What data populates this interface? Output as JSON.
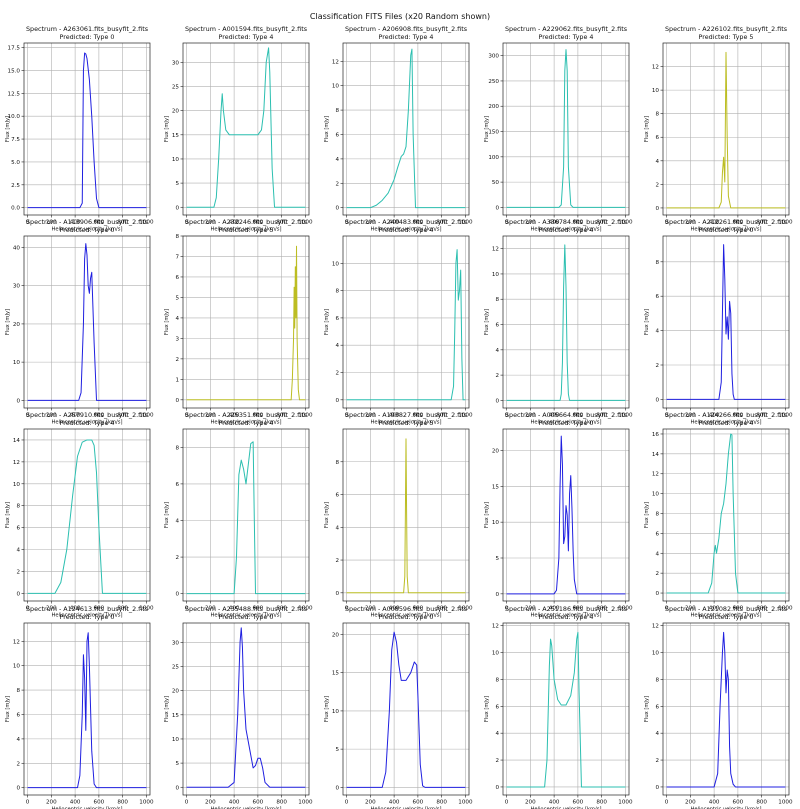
{
  "figure": {
    "suptitle": "Classification FITS Files (x20 Random shown)",
    "xlabel": "Heliocentric velocity [km/s]",
    "ylabel": "Flux [mJy]"
  },
  "chart_data": [
    {
      "type": "line",
      "title": "Spectrum - A263061.fits_busyfit_2.fits",
      "subtitle": "Predicted: Type 0",
      "color": "#1f1fe0",
      "xlim": [
        -30,
        1030
      ],
      "ylim": [
        -0.8,
        18
      ],
      "yticks": [
        0.0,
        2.5,
        5.0,
        7.5,
        10.0,
        12.5,
        15.0,
        17.5
      ],
      "xticks": [
        0,
        200,
        400,
        600,
        800,
        1000
      ],
      "x": [
        0,
        440,
        460,
        470,
        480,
        490,
        500,
        520,
        540,
        560,
        580,
        600,
        1000
      ],
      "y": [
        0,
        0,
        0.5,
        15,
        16.9,
        16.8,
        16.3,
        14,
        10,
        5,
        1,
        0,
        0
      ]
    },
    {
      "type": "line",
      "title": "Spectrum - A001594.fits_busyfit_2.fits",
      "subtitle": "Predicted: Type 4",
      "color": "#2bbfb0",
      "xlim": [
        -30,
        1030
      ],
      "ylim": [
        -1.6,
        34
      ],
      "yticks": [
        0,
        5,
        10,
        15,
        20,
        25,
        30
      ],
      "xticks": [
        0,
        200,
        400,
        600,
        800,
        1000
      ],
      "x": [
        0,
        230,
        250,
        270,
        290,
        300,
        310,
        330,
        360,
        400,
        500,
        600,
        630,
        650,
        670,
        690,
        700,
        720,
        740,
        1000
      ],
      "y": [
        0,
        0,
        2,
        10,
        20,
        23.5,
        20,
        16,
        15,
        15,
        15,
        15,
        16,
        20,
        30,
        33,
        28,
        8,
        0,
        0
      ]
    },
    {
      "type": "line",
      "title": "Spectrum - A206908.fits_busyfit_2.fits",
      "subtitle": "Predicted: Type 4",
      "color": "#2bbfb0",
      "xlim": [
        -30,
        1030
      ],
      "ylim": [
        -0.6,
        13.5
      ],
      "yticks": [
        0,
        2,
        4,
        6,
        8,
        10,
        12
      ],
      "xticks": [
        0,
        200,
        400,
        600,
        800,
        1000
      ],
      "x": [
        0,
        200,
        250,
        300,
        350,
        400,
        430,
        460,
        480,
        500,
        520,
        540,
        550,
        560,
        580,
        1000
      ],
      "y": [
        0,
        0,
        0.2,
        0.6,
        1.2,
        2.3,
        3.3,
        4.2,
        4.4,
        5,
        8,
        12.5,
        13,
        6,
        0,
        0
      ]
    },
    {
      "type": "line",
      "title": "Spectrum - A229062.fits_busyfit_2.fits",
      "subtitle": "Predicted: Type 4",
      "color": "#2bbfb0",
      "xlim": [
        -30,
        1030
      ],
      "ylim": [
        -15,
        325
      ],
      "yticks": [
        0,
        50,
        100,
        150,
        200,
        250,
        300
      ],
      "xticks": [
        0,
        200,
        400,
        600,
        800,
        1000
      ],
      "x": [
        0,
        440,
        460,
        480,
        490,
        500,
        510,
        520,
        540,
        560,
        1000
      ],
      "y": [
        0,
        0,
        5,
        80,
        270,
        312,
        270,
        80,
        5,
        0,
        0
      ]
    },
    {
      "type": "line",
      "title": "Spectrum - A226102.fits_busyfit_2.fits",
      "subtitle": "Predicted: Type 5",
      "color": "#bcbd22",
      "xlim": [
        -30,
        1030
      ],
      "ylim": [
        -0.6,
        14
      ],
      "yticks": [
        0,
        2,
        4,
        6,
        8,
        10,
        12
      ],
      "xticks": [
        0,
        200,
        400,
        600,
        800,
        1000
      ],
      "x": [
        0,
        440,
        460,
        470,
        480,
        490,
        500,
        510,
        520,
        540,
        1000
      ],
      "y": [
        0,
        0,
        0.5,
        3,
        4.3,
        2.2,
        13.2,
        6,
        1,
        0,
        0
      ]
    },
    {
      "type": "line",
      "title": "Spectrum - A113906.fits_busyfit_2.fits",
      "subtitle": "Predicted: Type 0",
      "color": "#1f1fe0",
      "xlim": [
        -30,
        1030
      ],
      "ylim": [
        -2,
        43
      ],
      "yticks": [
        0,
        10,
        20,
        30,
        40
      ],
      "xticks": [
        0,
        200,
        400,
        600,
        800,
        1000
      ],
      "x": [
        0,
        430,
        450,
        470,
        480,
        490,
        500,
        510,
        520,
        530,
        540,
        560,
        580,
        1000
      ],
      "y": [
        0,
        0,
        2,
        20,
        37,
        41,
        38,
        30,
        28,
        32,
        33.5,
        15,
        0,
        0
      ]
    },
    {
      "type": "line",
      "title": "Spectrum - A232246.fits_busyfit_2.fits",
      "subtitle": "Predicted: Type 5",
      "color": "#bcbd22",
      "xlim": [
        -30,
        1030
      ],
      "ylim": [
        -0.4,
        8
      ],
      "yticks": [
        0,
        1,
        2,
        3,
        4,
        5,
        6,
        7,
        8
      ],
      "xticks": [
        0,
        200,
        400,
        600,
        800,
        1000
      ],
      "x": [
        0,
        880,
        890,
        900,
        905,
        910,
        915,
        920,
        925,
        930,
        940,
        950,
        1000
      ],
      "y": [
        0,
        0,
        1,
        3,
        5.5,
        3.5,
        6.5,
        4,
        7.5,
        3,
        0.5,
        0,
        0
      ]
    },
    {
      "type": "line",
      "title": "Spectrum - A240483.fits_busyfit_2.fits",
      "subtitle": "Predicted: Type 4",
      "color": "#2bbfb0",
      "xlim": [
        -30,
        1030
      ],
      "ylim": [
        -0.6,
        12
      ],
      "yticks": [
        0,
        2,
        4,
        6,
        8,
        10
      ],
      "xticks": [
        0,
        200,
        400,
        600,
        800,
        1000
      ],
      "x": [
        0,
        880,
        900,
        910,
        920,
        930,
        940,
        950,
        960,
        970,
        980,
        1000
      ],
      "y": [
        0,
        0,
        1,
        5,
        10,
        11,
        7.3,
        8,
        9.5,
        3,
        0,
        0
      ]
    },
    {
      "type": "line",
      "title": "Spectrum - A336784.fits_busyfit_2.fits",
      "subtitle": "Predicted: Type 4",
      "color": "#2bbfb0",
      "xlim": [
        -30,
        1030
      ],
      "ylim": [
        -0.6,
        13
      ],
      "yticks": [
        0,
        2,
        4,
        6,
        8,
        10,
        12
      ],
      "xticks": [
        0,
        200,
        400,
        600,
        800,
        1000
      ],
      "x": [
        0,
        450,
        460,
        470,
        480,
        490,
        500,
        510,
        520,
        530,
        1000
      ],
      "y": [
        0,
        0,
        0.5,
        3,
        9,
        12.3,
        9,
        3,
        0.5,
        0,
        0
      ]
    },
    {
      "type": "line",
      "title": "Spectrum - A212261.fits_busyfit_2.fits",
      "subtitle": "Predicted: Type 0",
      "color": "#1f1fe0",
      "xlim": [
        -30,
        1030
      ],
      "ylim": [
        -0.5,
        9.5
      ],
      "yticks": [
        0,
        2,
        4,
        6,
        8
      ],
      "xticks": [
        0,
        200,
        400,
        600,
        800,
        1000
      ],
      "x": [
        0,
        440,
        460,
        470,
        480,
        490,
        500,
        510,
        520,
        530,
        540,
        550,
        560,
        570,
        1000
      ],
      "y": [
        0,
        0,
        1,
        5,
        9,
        7,
        3.8,
        4.8,
        3.5,
        5.7,
        5,
        1.5,
        0.3,
        0,
        0
      ]
    },
    {
      "type": "line",
      "title": "Spectrum - A257910.fits_busyfit_2.fits",
      "subtitle": "Predicted: Type 4",
      "color": "#2bbfb0",
      "xlim": [
        -30,
        1030
      ],
      "ylim": [
        -0.7,
        15
      ],
      "yticks": [
        0,
        2,
        4,
        6,
        8,
        10,
        12,
        14
      ],
      "xticks": [
        0,
        200,
        400,
        600,
        800,
        1000
      ],
      "x": [
        0,
        230,
        280,
        330,
        380,
        420,
        460,
        500,
        540,
        560,
        580,
        600,
        630,
        1000
      ],
      "y": [
        0,
        0,
        1,
        4,
        9,
        12.5,
        13.8,
        14,
        14,
        13.5,
        11,
        6,
        0,
        0
      ]
    },
    {
      "type": "line",
      "title": "Spectrum - A225351.fits_busyfit_2.fits",
      "subtitle": "Predicted: Type 4",
      "color": "#2bbfb0",
      "xlim": [
        -30,
        1030
      ],
      "ylim": [
        -0.4,
        9
      ],
      "yticks": [
        0,
        2,
        4,
        6,
        8
      ],
      "xticks": [
        0,
        200,
        400,
        600,
        800,
        1000
      ],
      "x": [
        0,
        400,
        420,
        440,
        460,
        480,
        500,
        540,
        560,
        570,
        580,
        1000
      ],
      "y": [
        0,
        0,
        2,
        6.5,
        7.3,
        6.8,
        6,
        8.2,
        8.3,
        4,
        0,
        0
      ]
    },
    {
      "type": "line",
      "title": "Spectrum - A193827.fits_busyfit_2.fits",
      "subtitle": "Predicted: Type 5",
      "color": "#bcbd22",
      "xlim": [
        -30,
        1030
      ],
      "ylim": [
        -0.5,
        10
      ],
      "yticks": [
        0,
        2,
        4,
        6,
        8
      ],
      "xticks": [
        0,
        200,
        400,
        600,
        800,
        1000
      ],
      "x": [
        0,
        480,
        490,
        495,
        500,
        505,
        510,
        520,
        1000
      ],
      "y": [
        0,
        0,
        1,
        5,
        9.4,
        5,
        1,
        0,
        0
      ]
    },
    {
      "type": "line",
      "title": "Spectrum - A005664.fits_busyfit_2.fits",
      "subtitle": "Predicted: Type 0",
      "color": "#1f1fe0",
      "xlim": [
        -30,
        1030
      ],
      "ylim": [
        -1,
        23
      ],
      "yticks": [
        0,
        5,
        10,
        15,
        20
      ],
      "xticks": [
        0,
        200,
        400,
        600,
        800,
        1000
      ],
      "x": [
        0,
        400,
        420,
        440,
        450,
        460,
        470,
        480,
        490,
        500,
        510,
        520,
        530,
        540,
        550,
        560,
        570,
        590,
        1000
      ],
      "y": [
        0,
        0,
        0.5,
        5,
        15,
        22,
        18,
        7,
        8,
        12.3,
        11,
        6,
        14,
        16.5,
        12,
        6,
        2,
        0,
        0
      ]
    },
    {
      "type": "line",
      "title": "Spectrum - A124266.fits_busyfit_2.fits",
      "subtitle": "Predicted: Type 4",
      "color": "#2bbfb0",
      "xlim": [
        -30,
        1030
      ],
      "ylim": [
        -0.8,
        16.5
      ],
      "yticks": [
        0,
        2,
        4,
        6,
        8,
        10,
        12,
        14,
        16
      ],
      "xticks": [
        0,
        200,
        400,
        600,
        800,
        1000
      ],
      "x": [
        0,
        350,
        380,
        400,
        410,
        420,
        440,
        460,
        480,
        500,
        520,
        540,
        550,
        560,
        580,
        600,
        1000
      ],
      "y": [
        0,
        0,
        1,
        4,
        4.8,
        4,
        5.5,
        8,
        9,
        11,
        14,
        16,
        15.9,
        10,
        2,
        0,
        0
      ]
    },
    {
      "type": "line",
      "title": "Spectrum - A124613.fits_busyfit_2.fits",
      "subtitle": "Predicted: Type 0",
      "color": "#1f1fe0",
      "xlim": [
        -30,
        1030
      ],
      "ylim": [
        -0.6,
        13.5
      ],
      "yticks": [
        0,
        2,
        4,
        6,
        8,
        10,
        12
      ],
      "xticks": [
        0,
        200,
        400,
        600,
        800,
        1000
      ],
      "x": [
        0,
        420,
        440,
        460,
        470,
        480,
        490,
        500,
        510,
        520,
        540,
        560,
        580,
        1000
      ],
      "y": [
        0,
        0,
        1,
        6,
        10.9,
        9,
        4.7,
        12,
        12.7,
        10,
        3,
        0.3,
        0,
        0
      ]
    },
    {
      "type": "line",
      "title": "Spectrum - A235488.fits_busyfit_2.fits",
      "subtitle": "Predicted: Type 0",
      "color": "#1f1fe0",
      "xlim": [
        -30,
        1030
      ],
      "ylim": [
        -1.6,
        34
      ],
      "yticks": [
        0,
        5,
        10,
        15,
        20,
        25,
        30
      ],
      "xticks": [
        0,
        200,
        400,
        600,
        800,
        1000
      ],
      "x": [
        0,
        350,
        400,
        430,
        450,
        460,
        470,
        480,
        500,
        530,
        560,
        580,
        600,
        620,
        640,
        660,
        700,
        1000
      ],
      "y": [
        0,
        0,
        1,
        15,
        30,
        33,
        29,
        20,
        12,
        8,
        4,
        4.5,
        6,
        6,
        4,
        1,
        0,
        0
      ]
    },
    {
      "type": "line",
      "title": "Spectrum - A008596.fits_busyfit_2.fits",
      "subtitle": "Predicted: Type 0",
      "color": "#1f1fe0",
      "xlim": [
        -30,
        1030
      ],
      "ylim": [
        -1,
        21.5
      ],
      "yticks": [
        0,
        5,
        10,
        15,
        20
      ],
      "xticks": [
        0,
        200,
        400,
        600,
        800,
        1000
      ],
      "x": [
        0,
        300,
        330,
        360,
        380,
        400,
        420,
        440,
        460,
        500,
        540,
        570,
        590,
        600,
        620,
        640,
        660,
        1000
      ],
      "y": [
        0,
        0,
        2,
        10,
        18,
        20.3,
        19,
        16,
        14,
        14,
        15,
        16.4,
        16,
        12,
        3,
        0.2,
        0,
        0
      ]
    },
    {
      "type": "line",
      "title": "Spectrum - A251186.fits_busyfit_2.fits",
      "subtitle": "Predicted: Type 4",
      "color": "#2bbfb0",
      "xlim": [
        -30,
        1030
      ],
      "ylim": [
        -0.6,
        12.2
      ],
      "yticks": [
        0,
        2,
        4,
        6,
        8,
        10,
        12
      ],
      "xticks": [
        0,
        200,
        400,
        600,
        800,
        1000
      ],
      "x": [
        0,
        320,
        340,
        360,
        370,
        380,
        400,
        430,
        460,
        500,
        540,
        570,
        590,
        600,
        610,
        630,
        1000
      ],
      "y": [
        0,
        0,
        2,
        9,
        11,
        10.5,
        8,
        6.5,
        6.1,
        6.1,
        6.8,
        8.5,
        11,
        11.5,
        7,
        0,
        0
      ]
    },
    {
      "type": "line",
      "title": "Spectrum - A121082.fits_busyfit_2.fits",
      "subtitle": "Predicted: Type 0",
      "color": "#1f1fe0",
      "xlim": [
        -30,
        1030
      ],
      "ylim": [
        -0.6,
        12.2
      ],
      "yticks": [
        0,
        2,
        4,
        6,
        8,
        10,
        12
      ],
      "xticks": [
        0,
        200,
        400,
        600,
        800,
        1000
      ],
      "x": [
        0,
        400,
        430,
        450,
        470,
        480,
        490,
        500,
        510,
        520,
        530,
        540,
        560,
        580,
        1000
      ],
      "y": [
        0,
        0,
        1,
        6,
        10,
        11.5,
        10,
        7,
        8.7,
        8,
        3,
        1,
        0.2,
        0,
        0
      ]
    }
  ]
}
